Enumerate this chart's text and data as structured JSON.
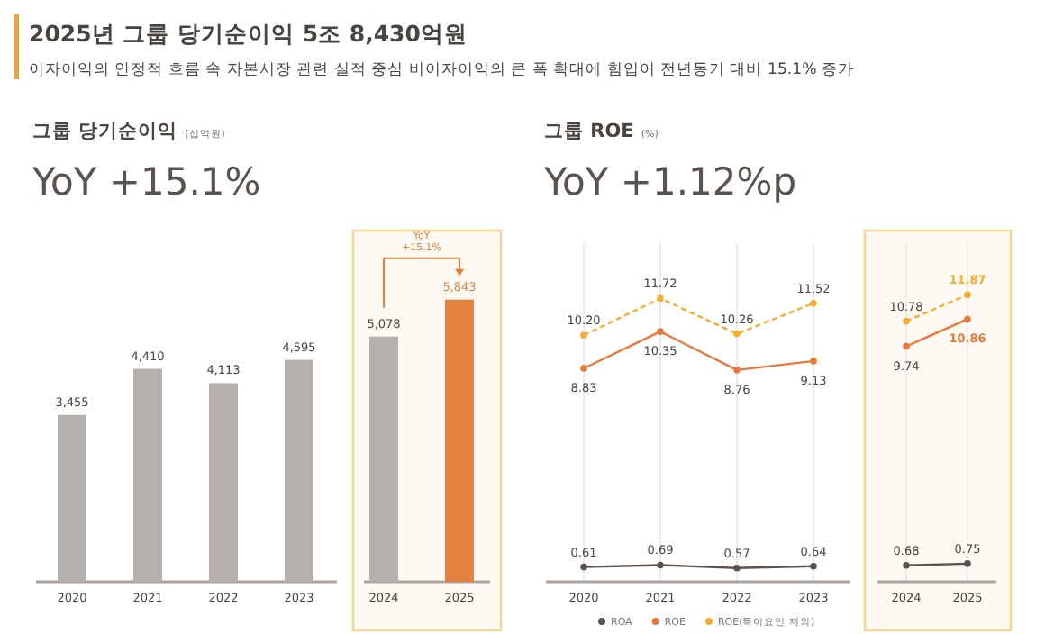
{
  "chart_data": [
    {
      "type": "other",
      "title": "2025년 그룹 당기순이익 5조 8,430억원",
      "subtitle": "이자이익의 안정적 흐름 속 자본시장 관련 실적 중심 비이자이익의 큰 폭 확대에 힘입어 전년동기 대비 15.1% 증가"
    },
    {
      "type": "bar",
      "title": "그룹 당기순이익",
      "annotations": [
        "(십억원)"
      ],
      "subtitle": "YoY +15.1%",
      "categories": [
        "2020",
        "2021",
        "2022",
        "2023"
      ],
      "values": [
        3455,
        4410,
        4113,
        4595
      ],
      "color": "#b5b0ab",
      "value_labels": [
        "3,455",
        "4,410",
        "4,113",
        "4,595"
      ]
    },
    {
      "type": "bar",
      "categories": [
        "2024",
        "2025"
      ],
      "values": [
        5078,
        5843
      ],
      "colors": [
        "#b5b0ab",
        "#e4813f"
      ],
      "value_labels": [
        "5,078",
        "5,843"
      ],
      "annotations": [
        "YoY +15.1%"
      ],
      "bands": [
        {
          "axis": "x",
          "from": "2024",
          "to": "2025",
          "color": "#f6d58e"
        }
      ]
    },
    {
      "type": "line",
      "title": "그룹 ROE",
      "annotations": [
        "(%)"
      ],
      "subtitle": "YoY +1.12%p",
      "categories": [
        "2020",
        "2021",
        "2022",
        "2023"
      ],
      "series": [
        {
          "name": "ROA",
          "color": "#5b534d",
          "values": [
            0.61,
            0.69,
            0.57,
            0.64
          ]
        },
        {
          "name": "ROE",
          "color": "#e8793a",
          "values": [
            8.83,
            10.35,
            8.76,
            9.13
          ]
        },
        {
          "name": "ROE(특이요인 제외)",
          "color": "#f4ad2f",
          "line_style": "dashed",
          "values": [
            10.2,
            11.72,
            10.26,
            11.52
          ],
          "value_labels": [
            "10.20",
            "11.72",
            "10.26",
            "11.52"
          ]
        }
      ],
      "data_labels": true,
      "marker": "circle",
      "line_style": "solid",
      "grid": "x",
      "legend": "bottom"
    },
    {
      "type": "line",
      "categories": [
        "2024",
        "2025"
      ],
      "series": [
        {
          "color": "#5b534d",
          "values": [
            0.68,
            0.75
          ]
        },
        {
          "color": "#e8793a",
          "values": [
            9.74,
            10.86
          ]
        },
        {
          "color": "#f4ad2f",
          "line_style": "dashed",
          "values": [
            10.78,
            11.87
          ]
        }
      ],
      "data_labels": true,
      "marker": "circle",
      "line_style": "solid",
      "grid": "x",
      "bands": [
        {
          "axis": "x",
          "from": "2024",
          "to": "2025",
          "color": "#f6d58e"
        }
      ]
    }
  ]
}
